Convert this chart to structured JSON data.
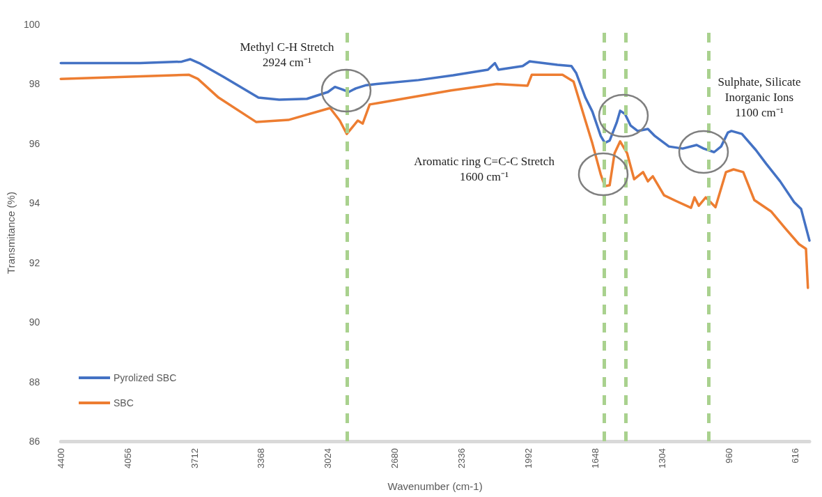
{
  "chart_data": {
    "type": "line",
    "xlabel": "Wavenumber (cm-1)",
    "ylabel": "Transmitance (%)",
    "xlim": [
      4400,
      544
    ],
    "xticks": [
      4400,
      4056,
      3712,
      3368,
      3024,
      2680,
      2336,
      1992,
      1648,
      1304,
      960,
      616
    ],
    "ylim": [
      86,
      100
    ],
    "yticks": [
      86,
      88,
      90,
      92,
      94,
      96,
      98,
      100
    ],
    "grid": false,
    "legend": "bottom left",
    "marker": "none",
    "line_style": "solid",
    "series": [
      {
        "name": "Pyrolized SBC",
        "color": "#4472c4",
        "x": [
          4400,
          3992,
          3777,
          3734,
          3687,
          3562,
          3382,
          3275,
          3132,
          3024,
          2988,
          2952,
          2917,
          2881,
          2827,
          2773,
          2558,
          2379,
          2200,
          2164,
          2146,
          2021,
          1985,
          1842,
          1770,
          1745,
          1698,
          1662,
          1619,
          1598,
          1573,
          1537,
          1519,
          1494,
          1465,
          1429,
          1376,
          1340,
          1268,
          1197,
          1125,
          1089,
          1035,
          999,
          964,
          946,
          892,
          820,
          767,
          695,
          623,
          587,
          544
        ],
        "values": [
          98.7,
          98.7,
          98.75,
          98.83,
          98.7,
          98.24,
          97.54,
          97.47,
          97.5,
          97.73,
          97.9,
          97.82,
          97.73,
          97.85,
          97.96,
          98.0,
          98.13,
          98.29,
          98.48,
          98.7,
          98.48,
          98.6,
          98.76,
          98.64,
          98.6,
          98.36,
          97.54,
          97.07,
          96.25,
          96.02,
          96.1,
          96.7,
          97.1,
          96.99,
          96.6,
          96.42,
          96.49,
          96.25,
          95.9,
          95.83,
          95.95,
          95.83,
          95.71,
          95.9,
          96.37,
          96.42,
          96.32,
          95.78,
          95.32,
          94.73,
          94.03,
          93.8,
          92.74
        ]
      },
      {
        "name": "SBC",
        "color": "#ed7d31",
        "x": [
          4400,
          3741,
          3694,
          3587,
          3393,
          3228,
          3013,
          2963,
          2927,
          2870,
          2845,
          2809,
          2748,
          2390,
          2153,
          1996,
          1974,
          1816,
          1759,
          1698,
          1662,
          1619,
          1598,
          1573,
          1548,
          1519,
          1483,
          1447,
          1401,
          1376,
          1351,
          1293,
          1232,
          1154,
          1136,
          1114,
          1078,
          1028,
          974,
          935,
          885,
          828,
          742,
          670,
          598,
          562,
          552
        ],
        "values": [
          98.17,
          98.31,
          98.17,
          97.54,
          96.72,
          96.79,
          97.19,
          96.77,
          96.32,
          96.77,
          96.67,
          97.31,
          97.38,
          97.78,
          98.0,
          97.94,
          98.31,
          98.31,
          98.08,
          96.77,
          96.0,
          94.96,
          94.57,
          94.6,
          95.67,
          96.07,
          95.67,
          94.8,
          95.04,
          94.73,
          94.9,
          94.26,
          94.07,
          93.84,
          94.19,
          93.91,
          94.19,
          93.86,
          95.04,
          95.13,
          95.04,
          94.1,
          93.72,
          93.16,
          92.62,
          92.46,
          91.15
        ]
      }
    ],
    "ref_lines": [
      {
        "axis": "x",
        "value": 2924,
        "color": "#a9d18e",
        "line_style": "dashed"
      },
      {
        "axis": "x",
        "value": 1600,
        "color": "#a9d18e",
        "line_style": "dashed"
      },
      {
        "axis": "x",
        "value": 1490,
        "color": "#a9d18e",
        "line_style": "dashed"
      },
      {
        "axis": "x",
        "value": 1065,
        "color": "#a9d18e",
        "line_style": "dashed"
      }
    ],
    "annotations": [
      "Methyl C-H Stretch\n2924 cm⁻¹",
      "Aromatic ring C=C-C Stretch\n1600 cm⁻¹",
      "Sulphate, Silicate\nInorganic Ions\n1100 cm⁻¹"
    ]
  }
}
